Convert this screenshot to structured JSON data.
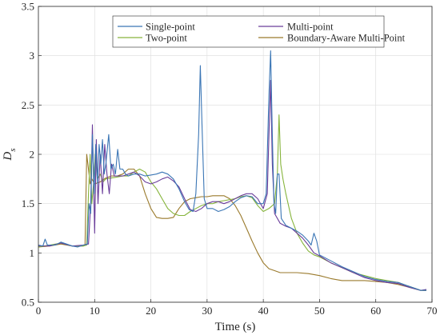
{
  "chart_data": {
    "type": "line",
    "xlabel": "Time (s)",
    "ylabel": "D",
    "ylabel_sub": "s",
    "xlim": [
      0,
      70
    ],
    "ylim": [
      0.5,
      3.5
    ],
    "xticks": [
      0,
      10,
      20,
      30,
      40,
      50,
      60,
      70
    ],
    "yticks": [
      0.5,
      1,
      1.5,
      2,
      2.5,
      3,
      3.5
    ],
    "xtick_labels": [
      "0",
      "10",
      "20",
      "30",
      "40",
      "50",
      "60",
      "70"
    ],
    "ytick_labels": [
      "0.5",
      "1",
      "1.5",
      "2",
      "2.5",
      "3",
      "3.5"
    ],
    "grid": true,
    "legend_position": "top-center",
    "series": [
      {
        "name": "Single-point",
        "color": "#3b76b5",
        "points": [
          [
            0,
            1.08
          ],
          [
            0.8,
            1.07
          ],
          [
            1.2,
            1.14
          ],
          [
            1.6,
            1.08
          ],
          [
            3,
            1.08
          ],
          [
            4,
            1.11
          ],
          [
            5,
            1.09
          ],
          [
            6,
            1.07
          ],
          [
            7,
            1.06
          ],
          [
            8,
            1.08
          ],
          [
            8.7,
            1.09
          ],
          [
            9,
            1.5
          ],
          [
            9.3,
            1.4
          ],
          [
            9.6,
            2.2
          ],
          [
            9.9,
            1.6
          ],
          [
            10.2,
            2.1
          ],
          [
            10.5,
            1.7
          ],
          [
            10.8,
            2.1
          ],
          [
            11.1,
            1.9
          ],
          [
            11.4,
            2.15
          ],
          [
            11.7,
            1.8
          ],
          [
            12,
            1.9
          ],
          [
            12.5,
            2.2
          ],
          [
            12.9,
            1.85
          ],
          [
            13.3,
            1.9
          ],
          [
            13.7,
            1.8
          ],
          [
            14.1,
            2.05
          ],
          [
            14.5,
            1.85
          ],
          [
            15,
            1.85
          ],
          [
            15.5,
            1.8
          ],
          [
            16,
            1.78
          ],
          [
            17,
            1.8
          ],
          [
            18,
            1.8
          ],
          [
            19,
            1.78
          ],
          [
            20,
            1.79
          ],
          [
            21,
            1.8
          ],
          [
            22,
            1.82
          ],
          [
            23,
            1.8
          ],
          [
            24,
            1.75
          ],
          [
            25,
            1.65
          ],
          [
            26,
            1.52
          ],
          [
            26.8,
            1.44
          ],
          [
            27.5,
            1.42
          ],
          [
            28,
            1.6
          ],
          [
            28.5,
            2.2
          ],
          [
            28.8,
            2.9
          ],
          [
            29.1,
            2.3
          ],
          [
            29.5,
            1.55
          ],
          [
            30,
            1.45
          ],
          [
            31,
            1.45
          ],
          [
            32,
            1.42
          ],
          [
            33,
            1.44
          ],
          [
            34,
            1.47
          ],
          [
            35,
            1.52
          ],
          [
            36,
            1.56
          ],
          [
            37,
            1.58
          ],
          [
            38,
            1.57
          ],
          [
            39,
            1.5
          ],
          [
            40,
            1.5
          ],
          [
            40.5,
            1.6
          ],
          [
            41,
            2.6
          ],
          [
            41.3,
            3.05
          ],
          [
            41.6,
            2.2
          ],
          [
            41.9,
            1.5
          ],
          [
            42.2,
            1.4
          ],
          [
            42.5,
            1.8
          ],
          [
            42.8,
            1.8
          ],
          [
            43.2,
            1.35
          ],
          [
            44,
            1.28
          ],
          [
            45,
            1.25
          ],
          [
            46,
            1.22
          ],
          [
            47,
            1.18
          ],
          [
            48,
            1.12
          ],
          [
            48.5,
            1.08
          ],
          [
            49,
            1.2
          ],
          [
            49.5,
            1.12
          ],
          [
            50,
            0.98
          ],
          [
            52,
            0.92
          ],
          [
            54,
            0.86
          ],
          [
            56,
            0.81
          ],
          [
            58,
            0.76
          ],
          [
            60,
            0.73
          ],
          [
            62,
            0.71
          ],
          [
            64,
            0.7
          ],
          [
            66,
            0.66
          ],
          [
            68,
            0.62
          ],
          [
            69,
            0.62
          ]
        ]
      },
      {
        "name": "Multi-point",
        "color": "#6a3d9a",
        "points": [
          [
            0,
            1.07
          ],
          [
            2,
            1.07
          ],
          [
            4,
            1.1
          ],
          [
            6,
            1.07
          ],
          [
            8,
            1.08
          ],
          [
            8.9,
            1.09
          ],
          [
            9.3,
            1.5
          ],
          [
            9.6,
            2.3
          ],
          [
            10,
            1.2
          ],
          [
            10.3,
            2.15
          ],
          [
            10.6,
            1.5
          ],
          [
            11,
            2.0
          ],
          [
            11.4,
            1.6
          ],
          [
            11.8,
            2.1
          ],
          [
            12.2,
            1.8
          ],
          [
            12.6,
            1.6
          ],
          [
            13,
            1.9
          ],
          [
            13.5,
            1.78
          ],
          [
            14,
            1.78
          ],
          [
            15,
            1.78
          ],
          [
            16,
            1.8
          ],
          [
            17,
            1.82
          ],
          [
            18,
            1.78
          ],
          [
            19,
            1.72
          ],
          [
            20,
            1.7
          ],
          [
            21,
            1.72
          ],
          [
            22,
            1.75
          ],
          [
            23,
            1.77
          ],
          [
            24,
            1.73
          ],
          [
            25,
            1.67
          ],
          [
            26,
            1.55
          ],
          [
            27,
            1.44
          ],
          [
            28,
            1.42
          ],
          [
            29,
            1.45
          ],
          [
            30,
            1.5
          ],
          [
            31,
            1.52
          ],
          [
            32,
            1.52
          ],
          [
            33,
            1.5
          ],
          [
            34,
            1.52
          ],
          [
            35,
            1.55
          ],
          [
            36,
            1.58
          ],
          [
            37,
            1.6
          ],
          [
            38,
            1.6
          ],
          [
            39,
            1.55
          ],
          [
            40,
            1.45
          ],
          [
            40.7,
            1.6
          ],
          [
            41,
            2.2
          ],
          [
            41.3,
            2.75
          ],
          [
            41.6,
            1.9
          ],
          [
            42,
            1.4
          ],
          [
            43,
            1.3
          ],
          [
            44,
            1.27
          ],
          [
            45,
            1.25
          ],
          [
            46,
            1.2
          ],
          [
            47,
            1.15
          ],
          [
            48,
            1.08
          ],
          [
            49,
            1.0
          ],
          [
            50,
            0.97
          ],
          [
            52,
            0.9
          ],
          [
            54,
            0.85
          ],
          [
            56,
            0.8
          ],
          [
            58,
            0.75
          ],
          [
            60,
            0.72
          ],
          [
            62,
            0.7
          ],
          [
            64,
            0.69
          ],
          [
            66,
            0.65
          ],
          [
            68,
            0.62
          ],
          [
            69,
            0.63
          ]
        ]
      },
      {
        "name": "Two-point",
        "color": "#86b43c",
        "points": [
          [
            0,
            1.06
          ],
          [
            2,
            1.08
          ],
          [
            4,
            1.1
          ],
          [
            6,
            1.07
          ],
          [
            8,
            1.07
          ],
          [
            8.6,
            1.08
          ],
          [
            8.9,
            1.6
          ],
          [
            9.2,
            2.0
          ],
          [
            9.5,
            1.5
          ],
          [
            9.8,
            1.7
          ],
          [
            10.1,
            2.0
          ],
          [
            10.5,
            1.75
          ],
          [
            11,
            1.8
          ],
          [
            11.5,
            1.72
          ],
          [
            12,
            1.75
          ],
          [
            13,
            1.76
          ],
          [
            14,
            1.77
          ],
          [
            15,
            1.78
          ],
          [
            16,
            1.78
          ],
          [
            17,
            1.82
          ],
          [
            18,
            1.85
          ],
          [
            19,
            1.82
          ],
          [
            20,
            1.72
          ],
          [
            21,
            1.65
          ],
          [
            22,
            1.55
          ],
          [
            23,
            1.45
          ],
          [
            24,
            1.4
          ],
          [
            25,
            1.38
          ],
          [
            26,
            1.38
          ],
          [
            27,
            1.42
          ],
          [
            28,
            1.45
          ],
          [
            29,
            1.48
          ],
          [
            30,
            1.5
          ],
          [
            31,
            1.5
          ],
          [
            32,
            1.52
          ],
          [
            33,
            1.53
          ],
          [
            34,
            1.54
          ],
          [
            35,
            1.55
          ],
          [
            36,
            1.57
          ],
          [
            37,
            1.58
          ],
          [
            38,
            1.56
          ],
          [
            39,
            1.48
          ],
          [
            40,
            1.42
          ],
          [
            41,
            1.45
          ],
          [
            42,
            1.5
          ],
          [
            42.5,
            1.8
          ],
          [
            42.8,
            2.4
          ],
          [
            43.1,
            1.9
          ],
          [
            43.5,
            1.75
          ],
          [
            44,
            1.6
          ],
          [
            45,
            1.35
          ],
          [
            46,
            1.2
          ],
          [
            47,
            1.1
          ],
          [
            48,
            1.02
          ],
          [
            49,
            0.98
          ],
          [
            50,
            0.96
          ],
          [
            52,
            0.9
          ],
          [
            54,
            0.85
          ],
          [
            56,
            0.8
          ],
          [
            58,
            0.77
          ],
          [
            60,
            0.74
          ],
          [
            62,
            0.72
          ],
          [
            64,
            0.7
          ],
          [
            66,
            0.66
          ],
          [
            68,
            0.62
          ],
          [
            69,
            0.62
          ]
        ]
      },
      {
        "name": "Boundary-Aware Multi-Point",
        "color": "#9a7a2c",
        "points": [
          [
            0,
            1.06
          ],
          [
            2,
            1.07
          ],
          [
            4,
            1.09
          ],
          [
            6,
            1.07
          ],
          [
            8,
            1.07
          ],
          [
            8.3,
            1.08
          ],
          [
            8.6,
            2.0
          ],
          [
            8.9,
            1.85
          ],
          [
            9.2,
            1.7
          ],
          [
            9.5,
            1.75
          ],
          [
            10,
            1.7
          ],
          [
            11,
            1.72
          ],
          [
            12,
            1.76
          ],
          [
            13,
            1.78
          ],
          [
            14,
            1.78
          ],
          [
            15,
            1.8
          ],
          [
            16,
            1.85
          ],
          [
            17,
            1.85
          ],
          [
            18,
            1.78
          ],
          [
            19,
            1.6
          ],
          [
            20,
            1.45
          ],
          [
            21,
            1.36
          ],
          [
            22,
            1.35
          ],
          [
            23,
            1.35
          ],
          [
            24,
            1.36
          ],
          [
            25,
            1.45
          ],
          [
            26,
            1.52
          ],
          [
            27,
            1.55
          ],
          [
            28,
            1.56
          ],
          [
            29,
            1.57
          ],
          [
            30,
            1.57
          ],
          [
            31,
            1.58
          ],
          [
            32,
            1.58
          ],
          [
            33,
            1.58
          ],
          [
            34,
            1.55
          ],
          [
            35,
            1.48
          ],
          [
            36,
            1.38
          ],
          [
            37,
            1.25
          ],
          [
            38,
            1.12
          ],
          [
            39,
            1.0
          ],
          [
            40,
            0.9
          ],
          [
            41,
            0.84
          ],
          [
            42,
            0.82
          ],
          [
            43,
            0.8
          ],
          [
            44,
            0.8
          ],
          [
            46,
            0.8
          ],
          [
            48,
            0.79
          ],
          [
            50,
            0.77
          ],
          [
            52,
            0.74
          ],
          [
            54,
            0.72
          ],
          [
            56,
            0.72
          ],
          [
            58,
            0.72
          ],
          [
            60,
            0.71
          ],
          [
            62,
            0.7
          ],
          [
            64,
            0.68
          ],
          [
            66,
            0.65
          ],
          [
            68,
            0.62
          ],
          [
            69,
            0.62
          ]
        ]
      }
    ]
  }
}
